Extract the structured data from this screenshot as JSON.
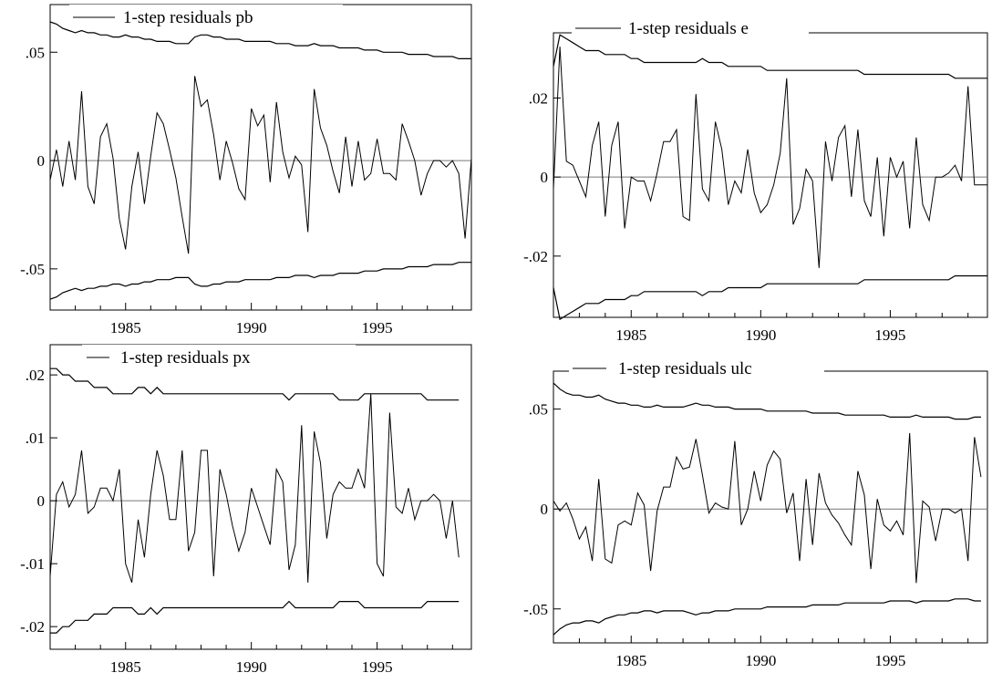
{
  "chart_data": [
    {
      "type": "line",
      "legend": "1-step residuals pb",
      "ylim": [
        -0.069,
        0.072
      ],
      "xlim": [
        1982.0,
        1998.75
      ],
      "yticks": [
        {
          "v": 0.05,
          "label": ".05"
        },
        {
          "v": 0,
          "label": "0"
        },
        {
          "v": -0.05,
          "label": "-.05"
        }
      ],
      "xticks": [
        {
          "v": 1985,
          "label": "1985"
        },
        {
          "v": 1990,
          "label": "1990"
        },
        {
          "v": 1995,
          "label": "1995"
        }
      ],
      "x_start": 1982.0,
      "x_step": 0.25,
      "residuals": [
        -0.009,
        0.005,
        -0.012,
        0.009,
        -0.009,
        0.032,
        -0.012,
        -0.02,
        0.011,
        0.017,
        0.001,
        -0.027,
        -0.041,
        -0.012,
        0.004,
        -0.02,
        0.002,
        0.022,
        0.017,
        0.005,
        -0.008,
        -0.026,
        -0.043,
        0.039,
        0.025,
        0.028,
        0.012,
        -0.009,
        0.009,
        -0.001,
        -0.013,
        -0.018,
        0.024,
        0.016,
        0.021,
        -0.01,
        0.027,
        0.004,
        -0.008,
        0.002,
        -0.002,
        -0.033,
        0.033,
        0.015,
        0.007,
        -0.005,
        -0.015,
        0.011,
        -0.012,
        0.009,
        -0.009,
        -0.006,
        0.01,
        -0.006,
        -0.006,
        -0.009,
        0.017,
        0.009,
        0.0,
        -0.016,
        -0.006,
        0.0,
        0.0,
        -0.003,
        0.0,
        -0.006,
        -0.036,
        0.001
      ],
      "upper_band": [
        0.064,
        0.063,
        0.061,
        0.06,
        0.059,
        0.06,
        0.059,
        0.059,
        0.058,
        0.058,
        0.057,
        0.057,
        0.058,
        0.057,
        0.057,
        0.056,
        0.056,
        0.055,
        0.055,
        0.055,
        0.054,
        0.054,
        0.054,
        0.057,
        0.058,
        0.058,
        0.057,
        0.057,
        0.056,
        0.056,
        0.056,
        0.055,
        0.055,
        0.055,
        0.055,
        0.055,
        0.054,
        0.054,
        0.054,
        0.053,
        0.053,
        0.053,
        0.054,
        0.053,
        0.053,
        0.053,
        0.052,
        0.052,
        0.052,
        0.052,
        0.051,
        0.051,
        0.051,
        0.05,
        0.05,
        0.05,
        0.05,
        0.049,
        0.049,
        0.049,
        0.049,
        0.048,
        0.048,
        0.048,
        0.048,
        0.047,
        0.047,
        0.047
      ],
      "lower_band": [
        -0.064,
        -0.063,
        -0.061,
        -0.06,
        -0.059,
        -0.06,
        -0.059,
        -0.059,
        -0.058,
        -0.058,
        -0.057,
        -0.057,
        -0.058,
        -0.057,
        -0.057,
        -0.056,
        -0.056,
        -0.055,
        -0.055,
        -0.055,
        -0.054,
        -0.054,
        -0.054,
        -0.057,
        -0.058,
        -0.058,
        -0.057,
        -0.057,
        -0.056,
        -0.056,
        -0.056,
        -0.055,
        -0.055,
        -0.055,
        -0.055,
        -0.055,
        -0.054,
        -0.054,
        -0.054,
        -0.053,
        -0.053,
        -0.053,
        -0.054,
        -0.053,
        -0.053,
        -0.053,
        -0.052,
        -0.052,
        -0.052,
        -0.052,
        -0.051,
        -0.051,
        -0.051,
        -0.05,
        -0.05,
        -0.05,
        -0.05,
        -0.049,
        -0.049,
        -0.049,
        -0.049,
        -0.048,
        -0.048,
        -0.048,
        -0.048,
        -0.047,
        -0.047,
        -0.047
      ]
    },
    {
      "type": "line",
      "legend": "1-step residuals e",
      "ylim": [
        -0.0355,
        0.0365
      ],
      "xlim": [
        1982.0,
        1998.75
      ],
      "yticks": [
        {
          "v": 0.02,
          "label": ".02"
        },
        {
          "v": 0,
          "label": "0"
        },
        {
          "v": -0.02,
          "label": "-.02"
        }
      ],
      "xticks": [
        {
          "v": 1985,
          "label": "1985"
        },
        {
          "v": 1990,
          "label": "1990"
        },
        {
          "v": 1995,
          "label": "1995"
        }
      ],
      "x_start": 1982.0,
      "x_step": 0.25,
      "residuals": [
        -0.003,
        0.033,
        0.004,
        0.003,
        -0.001,
        -0.005,
        0.008,
        0.014,
        -0.01,
        0.008,
        0.014,
        -0.013,
        0.0,
        -0.001,
        -0.001,
        -0.006,
        0.001,
        0.009,
        0.009,
        0.012,
        -0.01,
        -0.011,
        0.021,
        -0.003,
        -0.006,
        0.014,
        0.007,
        -0.007,
        -0.001,
        -0.004,
        0.007,
        -0.004,
        -0.009,
        -0.007,
        -0.002,
        0.006,
        0.025,
        -0.012,
        -0.008,
        0.002,
        -0.001,
        -0.023,
        0.009,
        -0.001,
        0.01,
        0.013,
        -0.005,
        0.012,
        -0.006,
        -0.01,
        0.005,
        -0.015,
        0.005,
        0.0,
        0.004,
        -0.013,
        0.01,
        -0.007,
        -0.011,
        0.0,
        0.0,
        0.001,
        0.003,
        -0.001,
        0.023,
        -0.002,
        -0.002,
        -0.002
      ],
      "upper_band": [
        0.028,
        0.036,
        0.035,
        0.034,
        0.033,
        0.032,
        0.032,
        0.032,
        0.031,
        0.031,
        0.031,
        0.031,
        0.03,
        0.03,
        0.029,
        0.029,
        0.029,
        0.029,
        0.029,
        0.029,
        0.029,
        0.029,
        0.029,
        0.03,
        0.029,
        0.029,
        0.029,
        0.028,
        0.028,
        0.028,
        0.028,
        0.028,
        0.028,
        0.027,
        0.027,
        0.027,
        0.027,
        0.027,
        0.027,
        0.027,
        0.027,
        0.027,
        0.027,
        0.027,
        0.027,
        0.027,
        0.027,
        0.027,
        0.026,
        0.026,
        0.026,
        0.026,
        0.026,
        0.026,
        0.026,
        0.026,
        0.026,
        0.026,
        0.026,
        0.026,
        0.026,
        0.026,
        0.025,
        0.025,
        0.025,
        0.025,
        0.025,
        0.025
      ],
      "lower_band": [
        -0.028,
        -0.036,
        -0.035,
        -0.034,
        -0.033,
        -0.032,
        -0.032,
        -0.032,
        -0.031,
        -0.031,
        -0.031,
        -0.031,
        -0.03,
        -0.03,
        -0.029,
        -0.029,
        -0.029,
        -0.029,
        -0.029,
        -0.029,
        -0.029,
        -0.029,
        -0.029,
        -0.03,
        -0.029,
        -0.029,
        -0.029,
        -0.028,
        -0.028,
        -0.028,
        -0.028,
        -0.028,
        -0.028,
        -0.027,
        -0.027,
        -0.027,
        -0.027,
        -0.027,
        -0.027,
        -0.027,
        -0.027,
        -0.027,
        -0.027,
        -0.027,
        -0.027,
        -0.027,
        -0.027,
        -0.027,
        -0.026,
        -0.026,
        -0.026,
        -0.026,
        -0.026,
        -0.026,
        -0.026,
        -0.026,
        -0.026,
        -0.026,
        -0.026,
        -0.026,
        -0.026,
        -0.026,
        -0.025,
        -0.025,
        -0.025,
        -0.025,
        -0.025,
        -0.025
      ]
    },
    {
      "type": "line",
      "legend": "1-step residuals px",
      "ylim": [
        -0.0236,
        0.0248
      ],
      "xlim": [
        1982.0,
        1998.75
      ],
      "yticks": [
        {
          "v": 0.02,
          "label": ".02"
        },
        {
          "v": 0.01,
          "label": ".01"
        },
        {
          "v": 0,
          "label": "0"
        },
        {
          "v": -0.01,
          "label": "-.01"
        },
        {
          "v": -0.02,
          "label": "-.02"
        }
      ],
      "xticks": [
        {
          "v": 1985,
          "label": "1985"
        },
        {
          "v": 1990,
          "label": "1990"
        },
        {
          "v": 1995,
          "label": "1995"
        }
      ],
      "x_start": 1982.0,
      "x_step": 0.25,
      "residuals": [
        -0.012,
        0.001,
        0.003,
        -0.001,
        0.001,
        0.008,
        -0.002,
        -0.001,
        0.002,
        0.002,
        0.0,
        0.005,
        -0.01,
        -0.013,
        -0.003,
        -0.009,
        0.001,
        0.008,
        0.004,
        -0.003,
        -0.003,
        0.008,
        -0.008,
        -0.005,
        0.008,
        0.008,
        -0.012,
        0.005,
        0.001,
        -0.004,
        -0.008,
        -0.005,
        0.002,
        -0.001,
        -0.004,
        -0.007,
        0.005,
        0.003,
        -0.011,
        -0.007,
        0.012,
        -0.013,
        0.011,
        0.006,
        -0.006,
        0.001,
        0.003,
        0.002,
        0.002,
        0.005,
        0.002,
        0.017,
        -0.01,
        -0.012,
        0.014,
        -0.001,
        -0.002,
        0.002,
        -0.003,
        0.0,
        0.0,
        0.001,
        0.0,
        -0.006,
        0.0,
        -0.009
      ],
      "upper_band": [
        0.021,
        0.021,
        0.02,
        0.02,
        0.019,
        0.019,
        0.019,
        0.018,
        0.018,
        0.018,
        0.017,
        0.017,
        0.017,
        0.017,
        0.018,
        0.018,
        0.017,
        0.018,
        0.017,
        0.017,
        0.017,
        0.017,
        0.017,
        0.017,
        0.017,
        0.017,
        0.017,
        0.017,
        0.017,
        0.017,
        0.017,
        0.017,
        0.017,
        0.017,
        0.017,
        0.017,
        0.017,
        0.017,
        0.016,
        0.017,
        0.017,
        0.017,
        0.017,
        0.017,
        0.017,
        0.017,
        0.016,
        0.016,
        0.016,
        0.016,
        0.017,
        0.017,
        0.017,
        0.017,
        0.017,
        0.017,
        0.017,
        0.017,
        0.017,
        0.017,
        0.016,
        0.016,
        0.016,
        0.016,
        0.016,
        0.016
      ],
      "lower_band": [
        -0.021,
        -0.021,
        -0.02,
        -0.02,
        -0.019,
        -0.019,
        -0.019,
        -0.018,
        -0.018,
        -0.018,
        -0.017,
        -0.017,
        -0.017,
        -0.017,
        -0.018,
        -0.018,
        -0.017,
        -0.018,
        -0.017,
        -0.017,
        -0.017,
        -0.017,
        -0.017,
        -0.017,
        -0.017,
        -0.017,
        -0.017,
        -0.017,
        -0.017,
        -0.017,
        -0.017,
        -0.017,
        -0.017,
        -0.017,
        -0.017,
        -0.017,
        -0.017,
        -0.017,
        -0.016,
        -0.017,
        -0.017,
        -0.017,
        -0.017,
        -0.017,
        -0.017,
        -0.017,
        -0.016,
        -0.016,
        -0.016,
        -0.016,
        -0.017,
        -0.017,
        -0.017,
        -0.017,
        -0.017,
        -0.017,
        -0.017,
        -0.017,
        -0.017,
        -0.017,
        -0.016,
        -0.016,
        -0.016,
        -0.016,
        -0.016,
        -0.016
      ]
    },
    {
      "type": "line",
      "legend": "1-step residuals ulc",
      "ylim": [
        -0.067,
        0.069
      ],
      "xlim": [
        1982.0,
        1998.75
      ],
      "yticks": [
        {
          "v": 0.05,
          "label": ".05"
        },
        {
          "v": 0,
          "label": "0"
        },
        {
          "v": -0.05,
          "label": "-.05"
        }
      ],
      "xticks": [
        {
          "v": 1985,
          "label": "1985"
        },
        {
          "v": 1990,
          "label": "1990"
        },
        {
          "v": 1995,
          "label": "1995"
        }
      ],
      "x_start": 1982.0,
      "x_step": 0.25,
      "residuals": [
        0.004,
        -0.001,
        0.003,
        -0.005,
        -0.015,
        -0.009,
        -0.026,
        0.015,
        -0.025,
        -0.027,
        -0.008,
        -0.006,
        -0.008,
        0.008,
        0.002,
        -0.031,
        -0.001,
        0.011,
        0.011,
        0.026,
        0.02,
        0.021,
        0.035,
        0.017,
        -0.002,
        0.003,
        0.001,
        0.0,
        0.034,
        -0.008,
        0.0,
        0.019,
        0.004,
        0.022,
        0.029,
        0.025,
        -0.002,
        0.008,
        -0.026,
        0.015,
        -0.018,
        0.018,
        0.003,
        -0.003,
        -0.007,
        -0.013,
        -0.018,
        0.019,
        0.007,
        -0.03,
        0.005,
        -0.008,
        -0.011,
        -0.006,
        -0.013,
        0.038,
        -0.037,
        0.004,
        0.001,
        -0.016,
        0.0,
        0.0,
        -0.002,
        0.0,
        -0.026,
        0.036,
        0.016
      ],
      "upper_band": [
        0.063,
        0.06,
        0.058,
        0.057,
        0.057,
        0.056,
        0.056,
        0.057,
        0.055,
        0.054,
        0.053,
        0.053,
        0.052,
        0.052,
        0.051,
        0.051,
        0.052,
        0.051,
        0.051,
        0.051,
        0.051,
        0.052,
        0.053,
        0.052,
        0.052,
        0.051,
        0.051,
        0.051,
        0.05,
        0.05,
        0.05,
        0.05,
        0.05,
        0.049,
        0.049,
        0.049,
        0.049,
        0.049,
        0.049,
        0.049,
        0.048,
        0.048,
        0.048,
        0.048,
        0.048,
        0.047,
        0.047,
        0.047,
        0.047,
        0.047,
        0.047,
        0.047,
        0.046,
        0.046,
        0.046,
        0.046,
        0.047,
        0.046,
        0.046,
        0.046,
        0.046,
        0.046,
        0.045,
        0.045,
        0.045,
        0.046,
        0.046
      ],
      "lower_band": [
        -0.063,
        -0.06,
        -0.058,
        -0.057,
        -0.057,
        -0.056,
        -0.056,
        -0.057,
        -0.055,
        -0.054,
        -0.053,
        -0.053,
        -0.052,
        -0.052,
        -0.051,
        -0.051,
        -0.052,
        -0.051,
        -0.051,
        -0.051,
        -0.051,
        -0.052,
        -0.053,
        -0.052,
        -0.052,
        -0.051,
        -0.051,
        -0.051,
        -0.05,
        -0.05,
        -0.05,
        -0.05,
        -0.05,
        -0.049,
        -0.049,
        -0.049,
        -0.049,
        -0.049,
        -0.049,
        -0.049,
        -0.048,
        -0.048,
        -0.048,
        -0.048,
        -0.048,
        -0.047,
        -0.047,
        -0.047,
        -0.047,
        -0.047,
        -0.047,
        -0.047,
        -0.046,
        -0.046,
        -0.046,
        -0.046,
        -0.047,
        -0.046,
        -0.046,
        -0.046,
        -0.046,
        -0.046,
        -0.045,
        -0.045,
        -0.045,
        -0.046,
        -0.046
      ]
    }
  ]
}
